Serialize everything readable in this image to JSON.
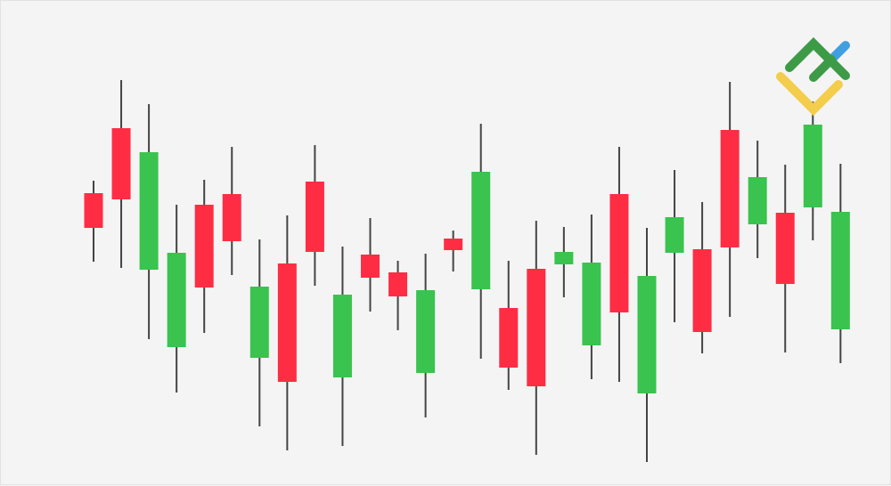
{
  "chart_data": {
    "type": "candlestick",
    "title": "",
    "xlabel": "",
    "ylabel": "",
    "axes_visible": false,
    "grid": false,
    "ylim": [
      0,
      54.5
    ],
    "colors": {
      "up": "#3ac34f",
      "down": "#ff2d44",
      "wick": "#444444",
      "background": "#f4f4f4"
    },
    "candles": [
      {
        "open": 32.9,
        "high": 34.3,
        "low": 25.2,
        "close": 29.0
      },
      {
        "open": 40.2,
        "high": 45.6,
        "low": 24.5,
        "close": 32.2
      },
      {
        "open": 24.3,
        "high": 42.9,
        "low": 16.5,
        "close": 37.5
      },
      {
        "open": 15.6,
        "high": 31.6,
        "low": 10.5,
        "close": 26.2
      },
      {
        "open": 31.6,
        "high": 34.4,
        "low": 17.2,
        "close": 22.3
      },
      {
        "open": 32.8,
        "high": 38.1,
        "low": 23.7,
        "close": 27.5
      },
      {
        "open": 14.4,
        "high": 27.7,
        "low": 6.7,
        "close": 22.4
      },
      {
        "open": 25.0,
        "high": 30.4,
        "low": 4.0,
        "close": 11.7
      },
      {
        "open": 34.2,
        "high": 38.3,
        "low": 22.5,
        "close": 26.3
      },
      {
        "open": 12.2,
        "high": 26.9,
        "low": 4.5,
        "close": 21.5
      },
      {
        "open": 26.0,
        "high": 30.1,
        "low": 19.6,
        "close": 23.4
      },
      {
        "open": 24.0,
        "high": 25.3,
        "low": 17.5,
        "close": 21.3
      },
      {
        "open": 12.7,
        "high": 26.1,
        "low": 7.7,
        "close": 22.0
      },
      {
        "open": 27.8,
        "high": 28.7,
        "low": 24.1,
        "close": 26.5
      },
      {
        "open": 22.1,
        "high": 40.7,
        "low": 14.3,
        "close": 35.3
      },
      {
        "open": 20.0,
        "high": 25.3,
        "low": 10.8,
        "close": 13.3
      },
      {
        "open": 24.4,
        "high": 29.8,
        "low": 3.5,
        "close": 11.2
      },
      {
        "open": 24.9,
        "high": 29.1,
        "low": 21.2,
        "close": 26.3
      },
      {
        "open": 15.8,
        "high": 30.5,
        "low": 12.0,
        "close": 25.1
      },
      {
        "open": 32.8,
        "high": 38.1,
        "low": 11.7,
        "close": 19.5
      },
      {
        "open": 10.4,
        "high": 29.0,
        "low": 2.7,
        "close": 23.6
      },
      {
        "open": 26.2,
        "high": 35.5,
        "low": 18.4,
        "close": 30.2
      },
      {
        "open": 26.6,
        "high": 31.9,
        "low": 14.9,
        "close": 17.3
      },
      {
        "open": 40.0,
        "high": 45.4,
        "low": 19.0,
        "close": 26.8
      },
      {
        "open": 29.4,
        "high": 38.8,
        "low": 25.6,
        "close": 34.7
      },
      {
        "open": 30.7,
        "high": 36.1,
        "low": 15.0,
        "close": 22.7
      },
      {
        "open": 31.3,
        "high": 43.2,
        "low": 27.6,
        "close": 40.6
      },
      {
        "open": 17.6,
        "high": 36.2,
        "low": 13.8,
        "close": 30.8
      }
    ]
  },
  "logo": {
    "colors": {
      "green": "#3d9a47",
      "blue": "#3f9fe0",
      "yellow": "#f3cd4b"
    }
  }
}
